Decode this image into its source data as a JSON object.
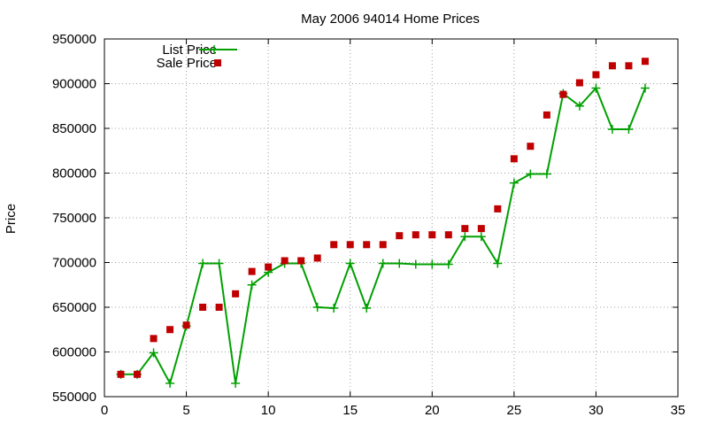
{
  "chart_data": {
    "type": "line",
    "title": "May 2006 94014 Home Prices",
    "xlabel": "",
    "ylabel": "Price",
    "xlim": [
      0,
      35
    ],
    "ylim": [
      550000,
      950000
    ],
    "x_ticks": [
      0,
      5,
      10,
      15,
      20,
      25,
      30,
      35
    ],
    "y_ticks": [
      550000,
      600000,
      650000,
      700000,
      750000,
      800000,
      850000,
      900000,
      950000
    ],
    "grid": true,
    "legend_position": "top-left",
    "series": [
      {
        "name": "List Price",
        "style": "line-with-plus-markers",
        "color": "#00a000",
        "x": [
          1,
          2,
          3,
          4,
          5,
          6,
          7,
          8,
          9,
          10,
          11,
          12,
          13,
          14,
          15,
          16,
          17,
          18,
          19,
          20,
          21,
          22,
          23,
          24,
          25,
          26,
          27,
          28,
          29,
          30,
          31,
          32,
          33
        ],
        "values": [
          575000,
          575000,
          599000,
          565000,
          629000,
          699000,
          699000,
          565000,
          675000,
          689000,
          699000,
          699000,
          650000,
          649000,
          699000,
          649000,
          699000,
          699000,
          698000,
          698000,
          698000,
          729000,
          729000,
          699000,
          789000,
          799000,
          799000,
          889000,
          875000,
          895000,
          849000,
          849000,
          895000
        ]
      },
      {
        "name": "Sale Price",
        "style": "square-markers",
        "color": "#c00000",
        "x": [
          1,
          2,
          3,
          4,
          5,
          6,
          7,
          8,
          9,
          10,
          11,
          12,
          13,
          14,
          15,
          16,
          17,
          18,
          19,
          20,
          21,
          22,
          23,
          24,
          25,
          26,
          27,
          28,
          29,
          30,
          31,
          32,
          33
        ],
        "values": [
          575000,
          575000,
          615000,
          625000,
          630000,
          650000,
          650000,
          665000,
          690000,
          695000,
          702000,
          702000,
          705000,
          720000,
          720000,
          720000,
          720000,
          730000,
          731000,
          731000,
          731000,
          738000,
          738000,
          760000,
          816000,
          830000,
          865000,
          888000,
          901000,
          910000,
          920000,
          920000,
          925000
        ]
      }
    ]
  }
}
